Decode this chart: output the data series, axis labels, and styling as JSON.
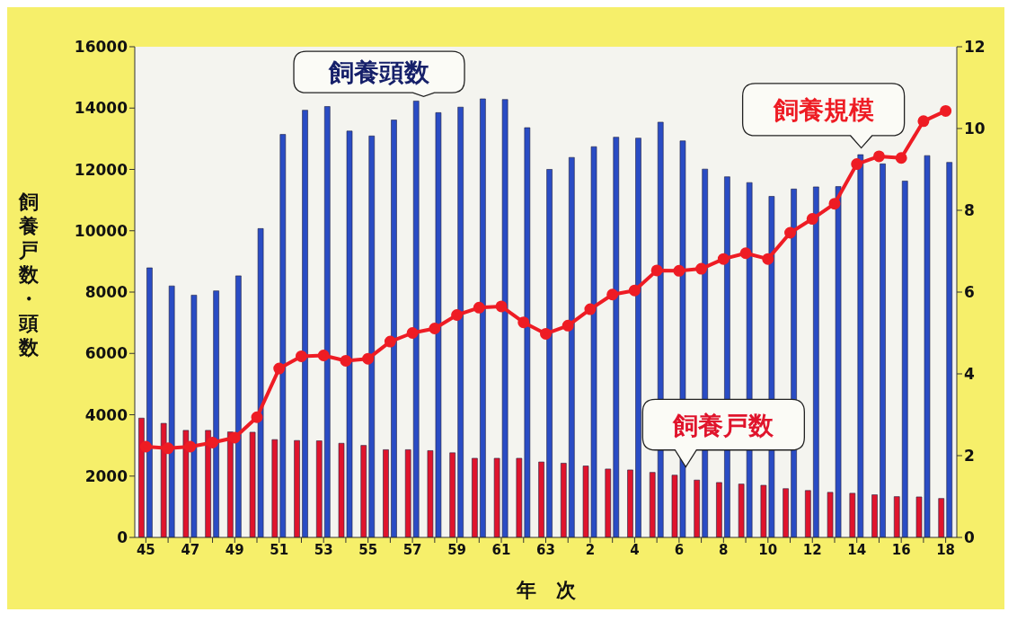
{
  "chart_data": {
    "type": "bar",
    "xlabel": "年　次",
    "ylabel": "飼養戸数・頭数",
    "categories": [
      "45",
      null,
      "47",
      null,
      "49",
      null,
      "51",
      null,
      "53",
      null,
      "55",
      null,
      "57",
      null,
      "59",
      null,
      "61",
      null,
      "63",
      null,
      "2",
      null,
      "4",
      null,
      "6",
      null,
      "8",
      null,
      "10",
      null,
      "12",
      null,
      "14",
      null,
      "16",
      null,
      "18"
    ],
    "series": [
      {
        "name": "飼養戸数",
        "color": "#e0142c",
        "values": [
          3890,
          3720,
          3490,
          3490,
          3440,
          3430,
          3190,
          3160,
          3150,
          3070,
          3000,
          2860,
          2860,
          2830,
          2760,
          2580,
          2580,
          2580,
          2460,
          2420,
          2330,
          2230,
          2200,
          2120,
          2030,
          1870,
          1790,
          1740,
          1700,
          1590,
          1530,
          1470,
          1440,
          1390,
          1330,
          1320,
          1270
        ]
      },
      {
        "name": "飼養頭数",
        "color": "#2a4cc4",
        "values": [
          8790,
          8200,
          7900,
          8040,
          8530,
          10070,
          13140,
          13930,
          14050,
          13250,
          13090,
          13610,
          14230,
          13850,
          14030,
          14300,
          14280,
          13360,
          12000,
          12390,
          12740,
          13050,
          13020,
          13540,
          12930,
          12010,
          11760,
          11570,
          11120,
          11360,
          11430,
          11440,
          12480,
          12180,
          11620,
          12450,
          12230
        ]
      },
      {
        "name": "飼養規模",
        "type": "line",
        "axis": "y2",
        "color": "#ee1c24",
        "values": [
          2.22,
          2.18,
          2.22,
          2.32,
          2.44,
          2.94,
          4.13,
          4.43,
          4.45,
          4.32,
          4.37,
          4.79,
          5.0,
          5.11,
          5.44,
          5.62,
          5.65,
          5.26,
          4.98,
          5.18,
          5.58,
          5.94,
          6.04,
          6.53,
          6.52,
          6.57,
          6.81,
          6.95,
          6.81,
          7.45,
          7.79,
          8.16,
          9.13,
          9.32,
          9.28,
          10.18,
          10.43
        ]
      }
    ],
    "ylim": [
      0,
      16000
    ],
    "yticks": [
      0,
      2000,
      4000,
      6000,
      8000,
      10000,
      12000,
      14000,
      16000
    ],
    "y2lim": [
      0,
      12
    ],
    "y2ticks": [
      0,
      2,
      4,
      6,
      8,
      10,
      12
    ],
    "marker": "circle",
    "line_style": "solid"
  }
}
